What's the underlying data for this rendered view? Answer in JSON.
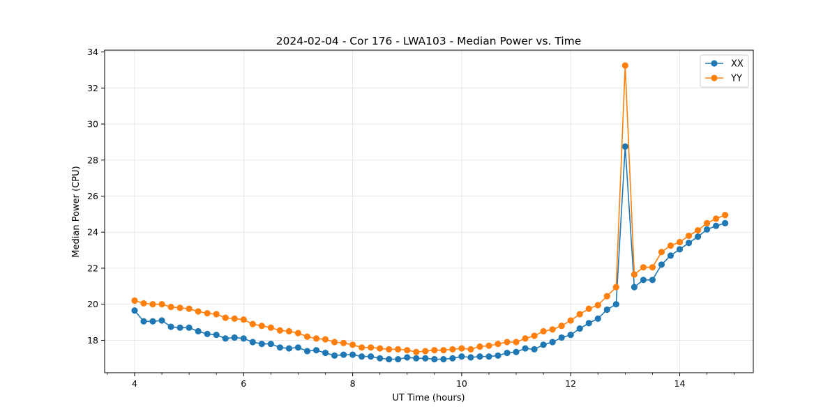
{
  "chart_data": {
    "type": "line",
    "title": "2024-02-04 - Cor 176 - LWA103 - Median Power vs. Time",
    "xlabel": "UT Time (hours)",
    "ylabel": "Median Power (CPU)",
    "xlim": [
      3.45,
      15.35
    ],
    "ylim": [
      16.2,
      34.1
    ],
    "xticks": [
      4,
      6,
      8,
      10,
      12,
      14
    ],
    "xtick_labels": [
      "4",
      "6",
      "8",
      "10",
      "12",
      "14"
    ],
    "yticks": [
      18,
      20,
      22,
      24,
      26,
      28,
      30,
      32,
      34
    ],
    "ytick_labels": [
      "18",
      "20",
      "22",
      "24",
      "26",
      "28",
      "30",
      "32",
      "34"
    ],
    "grid": true,
    "legend_position": "top-right",
    "x": [
      4.0,
      4.1667,
      4.3333,
      4.5,
      4.6667,
      4.8333,
      5.0,
      5.1667,
      5.3333,
      5.5,
      5.6667,
      5.8333,
      6.0,
      6.1667,
      6.3333,
      6.5,
      6.6667,
      6.8333,
      7.0,
      7.1667,
      7.3333,
      7.5,
      7.6667,
      7.8333,
      8.0,
      8.1667,
      8.3333,
      8.5,
      8.6667,
      8.8333,
      9.0,
      9.1667,
      9.3333,
      9.5,
      9.6667,
      9.8333,
      10.0,
      10.1667,
      10.3333,
      10.5,
      10.6667,
      10.8333,
      11.0,
      11.1667,
      11.3333,
      11.5,
      11.6667,
      11.8333,
      12.0,
      12.1667,
      12.3333,
      12.5,
      12.6667,
      12.8333,
      13.0,
      13.1667,
      13.3333,
      13.5,
      13.6667,
      13.8333,
      14.0,
      14.1667,
      14.3333,
      14.5,
      14.6667,
      14.8333
    ],
    "series": [
      {
        "name": "XX",
        "color": "#1f77b4",
        "values": [
          19.65,
          19.05,
          19.05,
          19.1,
          18.75,
          18.7,
          18.7,
          18.5,
          18.35,
          18.3,
          18.1,
          18.15,
          18.1,
          17.9,
          17.8,
          17.8,
          17.6,
          17.55,
          17.6,
          17.4,
          17.45,
          17.3,
          17.15,
          17.2,
          17.2,
          17.1,
          17.1,
          17.0,
          16.95,
          16.95,
          17.05,
          17.0,
          17.0,
          16.95,
          16.95,
          17.0,
          17.1,
          17.05,
          17.1,
          17.1,
          17.15,
          17.3,
          17.35,
          17.55,
          17.5,
          17.75,
          17.9,
          18.15,
          18.3,
          18.65,
          18.95,
          19.2,
          19.7,
          20.0,
          28.75,
          20.95,
          21.35,
          21.35,
          22.2,
          22.7,
          23.05,
          23.4,
          23.75,
          24.15,
          24.35,
          24.5
        ]
      },
      {
        "name": "YY",
        "color": "#ff7f0e",
        "values": [
          20.2,
          20.05,
          20.0,
          20.0,
          19.85,
          19.8,
          19.75,
          19.6,
          19.5,
          19.45,
          19.25,
          19.2,
          19.15,
          18.9,
          18.8,
          18.7,
          18.55,
          18.5,
          18.4,
          18.2,
          18.1,
          18.05,
          17.9,
          17.85,
          17.75,
          17.6,
          17.6,
          17.55,
          17.5,
          17.5,
          17.45,
          17.35,
          17.4,
          17.45,
          17.45,
          17.5,
          17.55,
          17.5,
          17.65,
          17.7,
          17.8,
          17.9,
          17.9,
          18.1,
          18.25,
          18.5,
          18.6,
          18.8,
          19.1,
          19.45,
          19.75,
          19.95,
          20.45,
          20.95,
          33.25,
          21.65,
          22.05,
          22.05,
          22.9,
          23.25,
          23.45,
          23.8,
          24.1,
          24.5,
          24.75,
          24.95
        ]
      }
    ]
  }
}
